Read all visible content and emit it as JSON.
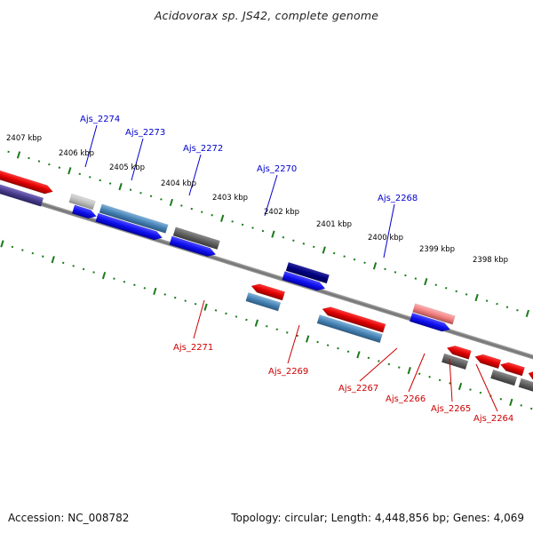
{
  "title": "Acidovorax sp. JS42, complete genome",
  "footer": {
    "accession": "Accession: NC_008782",
    "summary": "Topology: circular; Length: 4,448,856 bp; Genes: 4,069"
  },
  "colors": {
    "forward_label": "#0000cc",
    "reverse_label": "#cc0000",
    "tick": "#1a7a1a",
    "backbone": "#808080"
  },
  "kbp_labels": [
    "2407 kbp",
    "2406 kbp",
    "2405 kbp",
    "2404 kbp",
    "2403 kbp",
    "2402 kbp",
    "2401 kbp",
    "2400 kbp",
    "2399 kbp",
    "2398 kbp"
  ],
  "genes_top": [
    "Ajs_2274",
    "Ajs_2273",
    "Ajs_2272",
    "Ajs_2270",
    "Ajs_2268"
  ],
  "genes_bottom": [
    "Ajs_2271",
    "Ajs_2269",
    "Ajs_2267",
    "Ajs_2266",
    "Ajs_2265",
    "Ajs_2264"
  ]
}
